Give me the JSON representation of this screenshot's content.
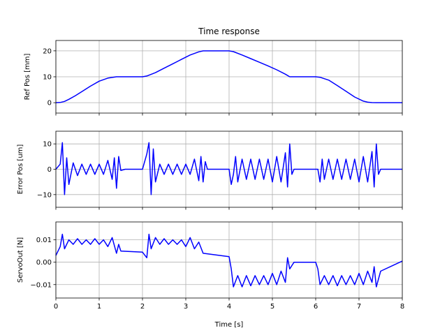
{
  "chart_data": {
    "type": "line",
    "title": "Time response",
    "xlabel": "Time [s]",
    "xlim": [
      0,
      8
    ],
    "xticks": [
      "0",
      "1",
      "2",
      "3",
      "4",
      "5",
      "6",
      "7",
      "8"
    ],
    "grid": true,
    "line_color": "#0000ff",
    "subplots": [
      {
        "ylabel": "Ref Pos [mm]",
        "ylim": [
          -4,
          24
        ],
        "yticks": [
          "0",
          "10",
          "20"
        ],
        "ytick_values": [
          0,
          10,
          20
        ],
        "series": [
          {
            "x": [
              0,
              0.1,
              0.2,
              0.3,
              0.45,
              0.6,
              0.8,
              1.0,
              1.2,
              1.4,
              1.5,
              2.0,
              2.1,
              2.3,
              2.5,
              2.7,
              2.9,
              3.1,
              3.3,
              3.4,
              4.0,
              4.1,
              4.3,
              4.5,
              4.7,
              4.9,
              5.1,
              5.3,
              5.4,
              6.0,
              6.1,
              6.3,
              6.5,
              6.7,
              6.9,
              7.1,
              7.2,
              7.3,
              7.4,
              7.5,
              8.0
            ],
            "y": [
              0,
              0.1,
              0.5,
              1.3,
              2.7,
              4.3,
              6.4,
              8.3,
              9.5,
              10,
              10,
              10,
              10.3,
              11.6,
              13.3,
              15.0,
              16.7,
              18.4,
              19.6,
              20,
              20,
              19.7,
              18.4,
              17.0,
              15.6,
              14.2,
              12.7,
              11.0,
              10,
              10,
              9.8,
              8.7,
              6.6,
              4.4,
              2.2,
              0.6,
              0.2,
              0.05,
              0,
              0,
              0
            ]
          }
        ]
      },
      {
        "ylabel": "Error Pos [um]",
        "ylim": [
          -15,
          15
        ],
        "yticks": [
          "−10",
          "0",
          "10"
        ],
        "ytick_values": [
          -10,
          0,
          10
        ],
        "series": [
          {
            "x": [
              0,
              0.1,
              0.15,
              0.2,
              0.25,
              0.3,
              0.4,
              0.5,
              0.6,
              0.7,
              0.8,
              0.9,
              1.0,
              1.1,
              1.2,
              1.3,
              1.35,
              1.4,
              1.45,
              1.5,
              1.6,
              2.0,
              2.1,
              2.15,
              2.2,
              2.25,
              2.3,
              2.4,
              2.5,
              2.6,
              2.7,
              2.8,
              2.9,
              3.0,
              3.1,
              3.2,
              3.3,
              3.35,
              3.4,
              3.45,
              3.5,
              4.0,
              4.05,
              4.1,
              4.15,
              4.2,
              4.3,
              4.4,
              4.5,
              4.6,
              4.7,
              4.8,
              4.9,
              5.0,
              5.1,
              5.2,
              5.3,
              5.35,
              5.4,
              5.45,
              5.5,
              6.0,
              6.05,
              6.1,
              6.15,
              6.2,
              6.3,
              6.4,
              6.5,
              6.6,
              6.7,
              6.8,
              6.9,
              7.0,
              7.1,
              7.2,
              7.3,
              7.35,
              7.4,
              7.45,
              7.5,
              8.0
            ],
            "y": [
              0,
              2,
              10.5,
              -10,
              4.5,
              -6,
              2.5,
              -2.5,
              2,
              -2,
              2,
              -2,
              2,
              -2,
              3.5,
              -4,
              4.5,
              -7.5,
              5,
              -0.5,
              0,
              0,
              6,
              10.5,
              -10,
              8,
              -5,
              2,
              -2,
              2,
              -2,
              2,
              -2,
              2,
              -2,
              4,
              -4.5,
              5,
              -5,
              3,
              0,
              0,
              -6,
              -2,
              5,
              -5,
              4,
              -4,
              4,
              -4,
              4,
              -4,
              4,
              -5,
              5,
              -5,
              6.5,
              -7,
              10,
              -2,
              0,
              0,
              0,
              -5,
              4,
              -4,
              4,
              -4,
              4,
              -4,
              4,
              -4,
              4,
              -5,
              5,
              -5,
              7,
              -7,
              10,
              -2,
              0,
              0
            ]
          }
        ]
      },
      {
        "ylabel": "ServoOut [N]",
        "ylim": [
          -0.016,
          0.018
        ],
        "yticks": [
          "−0.01",
          "0.00",
          "0.01"
        ],
        "ytick_values": [
          -0.01,
          0.0,
          0.01
        ],
        "series": [
          {
            "x": [
              0,
              0.1,
              0.15,
              0.2,
              0.3,
              0.4,
              0.5,
              0.6,
              0.7,
              0.8,
              0.9,
              1.0,
              1.1,
              1.2,
              1.3,
              1.4,
              1.45,
              1.5,
              2.0,
              2.1,
              2.15,
              2.2,
              2.3,
              2.4,
              2.5,
              2.6,
              2.7,
              2.8,
              2.9,
              3.0,
              3.1,
              3.2,
              3.3,
              3.4,
              4.0,
              4.05,
              4.1,
              4.2,
              4.3,
              4.4,
              4.5,
              4.6,
              4.7,
              4.8,
              4.9,
              5.0,
              5.1,
              5.2,
              5.3,
              5.35,
              5.4,
              5.5,
              6.0,
              6.05,
              6.1,
              6.2,
              6.3,
              6.4,
              6.5,
              6.6,
              6.7,
              6.8,
              6.9,
              7.0,
              7.1,
              7.2,
              7.3,
              7.35,
              7.4,
              7.5,
              8.0
            ],
            "y": [
              0.003,
              0.007,
              0.0125,
              0.006,
              0.01,
              0.008,
              0.0105,
              0.008,
              0.01,
              0.008,
              0.0105,
              0.008,
              0.01,
              0.007,
              0.011,
              0.004,
              0.008,
              0.005,
              0.0045,
              0.002,
              0.0125,
              0.006,
              0.011,
              0.008,
              0.0105,
              0.008,
              0.01,
              0.008,
              0.01,
              0.007,
              0.011,
              0.006,
              0.009,
              0.004,
              0.0025,
              -0.003,
              -0.011,
              -0.006,
              -0.011,
              -0.006,
              -0.0105,
              -0.006,
              -0.01,
              -0.006,
              -0.01,
              -0.005,
              -0.01,
              -0.004,
              -0.009,
              0.002,
              -0.003,
              0.0,
              0.0,
              -0.003,
              -0.01,
              -0.006,
              -0.01,
              -0.006,
              -0.0105,
              -0.006,
              -0.01,
              -0.006,
              -0.01,
              -0.005,
              -0.01,
              -0.004,
              -0.009,
              -0.002,
              -0.011,
              -0.004,
              0.0005
            ]
          }
        ]
      }
    ]
  }
}
